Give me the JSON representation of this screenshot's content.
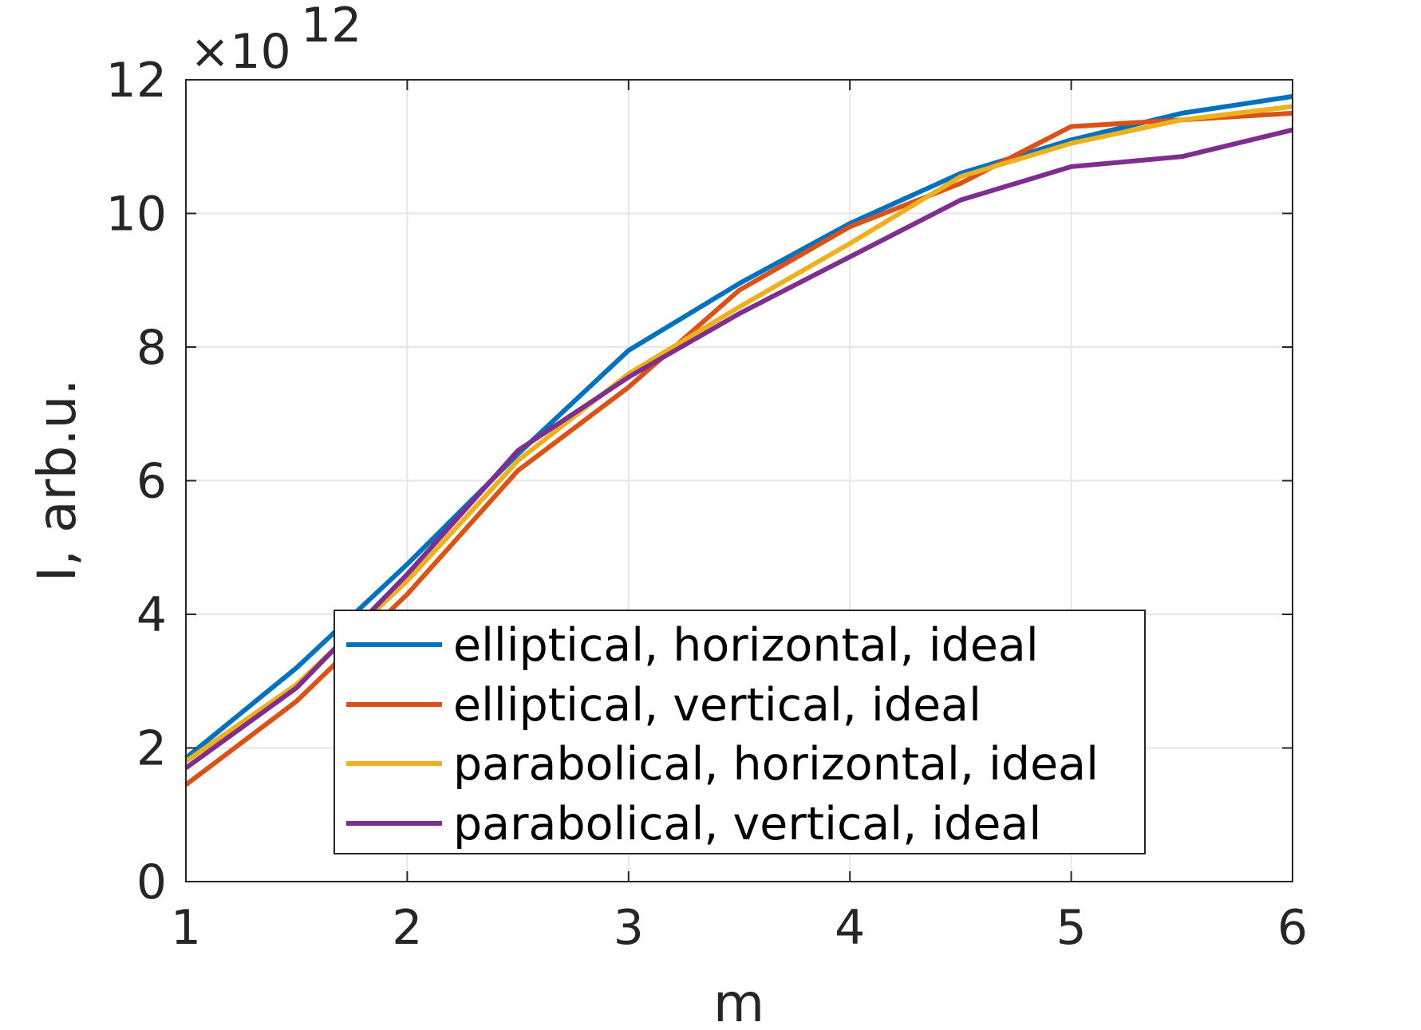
{
  "chart_data": {
    "type": "line",
    "xlabel": "m",
    "ylabel": "I, arb.u.",
    "y_multiplier": {
      "prefix": "×10",
      "exponent": "12"
    },
    "xlim": [
      1,
      6
    ],
    "ylim": [
      0,
      12
    ],
    "x_ticks": [
      "1",
      "2",
      "3",
      "4",
      "5",
      "6"
    ],
    "y_ticks": [
      "0",
      "2",
      "4",
      "6",
      "8",
      "10",
      "12"
    ],
    "grid": true,
    "legend_position": "bottom-center",
    "x": [
      1,
      1.5,
      2,
      2.5,
      3,
      3.5,
      4,
      4.5,
      5,
      5.5,
      6
    ],
    "series": [
      {
        "name": "elliptical, horizontal, ideal",
        "color": "#0072BD",
        "values": [
          1.85,
          3.2,
          4.75,
          6.4,
          7.95,
          8.95,
          9.85,
          10.6,
          11.1,
          11.5,
          11.75
        ]
      },
      {
        "name": "elliptical, vertical, ideal",
        "color": "#D95319",
        "values": [
          1.45,
          2.7,
          4.3,
          6.15,
          7.4,
          8.85,
          9.8,
          10.45,
          11.3,
          11.4,
          11.5
        ]
      },
      {
        "name": "parabolical, horizontal, ideal",
        "color": "#EDB120",
        "values": [
          1.8,
          2.95,
          4.5,
          6.3,
          7.6,
          8.6,
          9.55,
          10.55,
          11.05,
          11.4,
          11.6
        ]
      },
      {
        "name": "parabolical, vertical, ideal",
        "color": "#7E2F8E",
        "values": [
          1.7,
          2.9,
          4.6,
          6.45,
          7.55,
          8.5,
          9.35,
          10.2,
          10.7,
          10.85,
          11.25
        ]
      }
    ]
  }
}
